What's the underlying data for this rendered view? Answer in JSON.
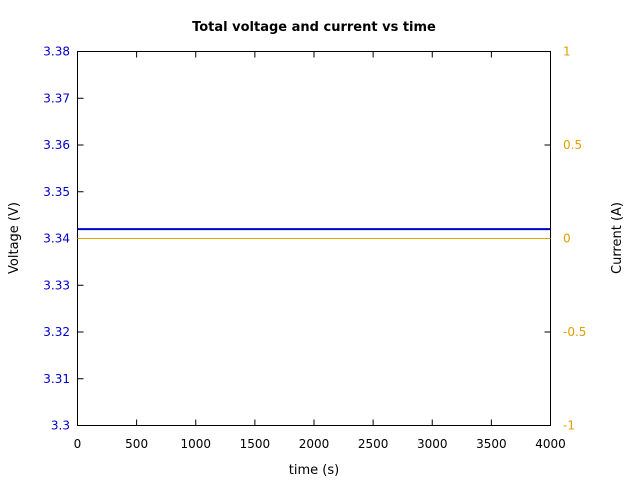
{
  "chart_data": {
    "type": "line",
    "title": "Total voltage and current vs time",
    "xlabel": "time (s)",
    "ylabel": "Voltage (V)",
    "y2label": "Current (A)",
    "xlim": [
      0,
      4000
    ],
    "ylim": [
      3.3,
      3.38
    ],
    "y2lim": [
      -1,
      1
    ],
    "x_ticks": [
      "0",
      "500",
      "1000",
      "1500",
      "2000",
      "2500",
      "3000",
      "3500",
      "4000"
    ],
    "y_ticks": [
      "3.3",
      "3.31",
      "3.32",
      "3.33",
      "3.34",
      "3.35",
      "3.36",
      "3.37",
      "3.38"
    ],
    "y2_ticks": [
      "-1",
      "-0.5",
      "0",
      "0.5",
      "1"
    ],
    "grid": false,
    "series": [
      {
        "axis": "left",
        "color": "#0000cc",
        "x": [
          0,
          4000
        ],
        "y": [
          3.342,
          3.342
        ]
      },
      {
        "axis": "right",
        "color": "#e0a000",
        "x": [
          0,
          4000
        ],
        "y": [
          0,
          0
        ]
      }
    ],
    "colors": {
      "left_axis": "#0000cc",
      "right_axis": "#e0a000",
      "frame": "#000000"
    }
  }
}
